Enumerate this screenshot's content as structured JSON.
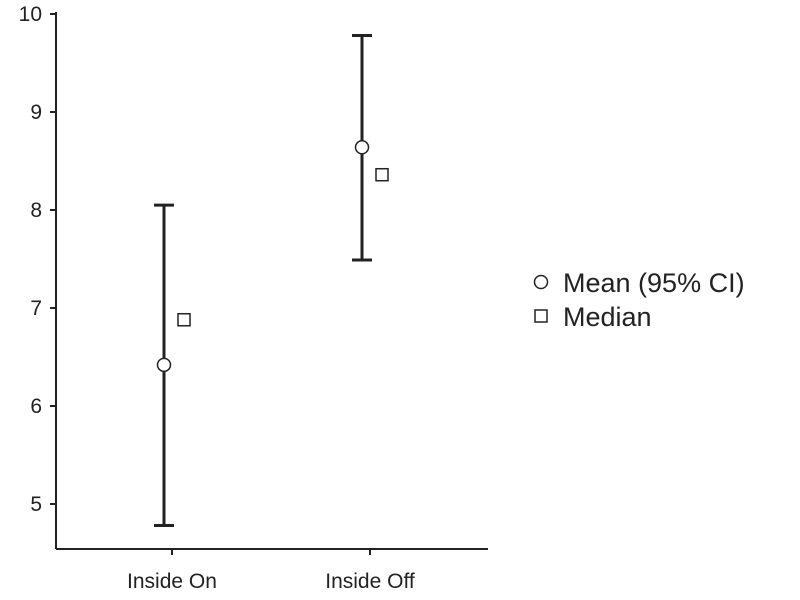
{
  "chart_data": {
    "type": "scatter",
    "categories": [
      "Inside On",
      "Inside Off"
    ],
    "series": [
      {
        "name": "Mean (95% CI)",
        "marker": "circle",
        "values": [
          6.42,
          8.64
        ],
        "ci_lower": [
          4.78,
          7.49
        ],
        "ci_upper": [
          8.05,
          9.78
        ]
      },
      {
        "name": "Median",
        "marker": "square",
        "values": [
          6.88,
          8.36
        ]
      }
    ],
    "yticks": [
      5,
      6,
      7,
      8,
      9,
      10
    ],
    "ylim": [
      4.55,
      10
    ],
    "title": "",
    "xlabel": "",
    "ylabel": "",
    "grid": false,
    "legend_position": "right",
    "colors": {
      "axis": "#222222",
      "marker_fill": "#ffffff",
      "text": "#222222"
    }
  }
}
